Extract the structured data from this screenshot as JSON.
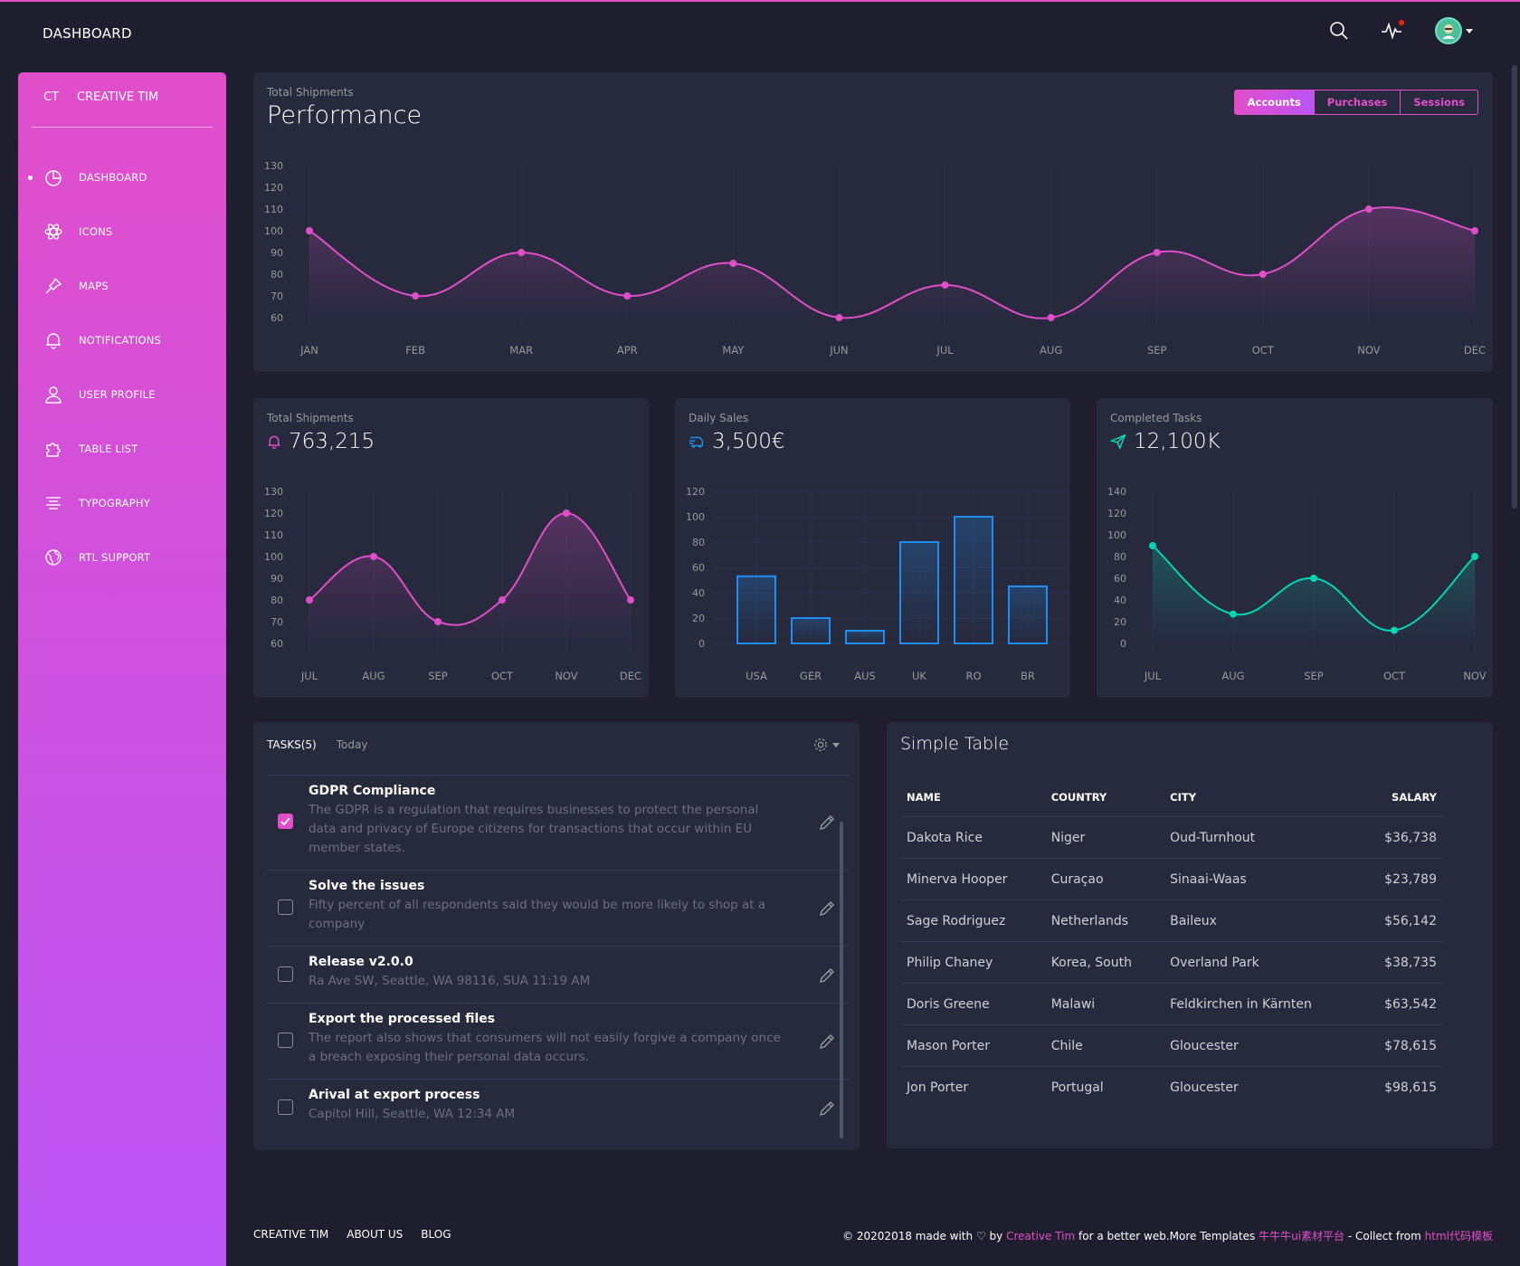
{
  "header": {
    "brand": "DASHBOARD"
  },
  "sidebar": {
    "logo_mini": "CT",
    "logo_text": "CREATIVE TIM",
    "items": [
      {
        "label": "DASHBOARD",
        "icon": "chart-pie-icon",
        "active": true
      },
      {
        "label": "ICONS",
        "icon": "atom-icon"
      },
      {
        "label": "MAPS",
        "icon": "pin-icon"
      },
      {
        "label": "NOTIFICATIONS",
        "icon": "bell-icon"
      },
      {
        "label": "USER PROFILE",
        "icon": "user-icon"
      },
      {
        "label": "TABLE LIST",
        "icon": "puzzle-icon"
      },
      {
        "label": "TYPOGRAPHY",
        "icon": "align-center-icon"
      },
      {
        "label": "RTL SUPPORT",
        "icon": "world-icon"
      }
    ]
  },
  "performance": {
    "subtitle": "Total Shipments",
    "title": "Performance",
    "tabs": [
      "Accounts",
      "Purchases",
      "Sessions"
    ],
    "active_tab": "Accounts"
  },
  "shipments": {
    "subtitle": "Total Shipments",
    "value": "763,215"
  },
  "daily_sales": {
    "subtitle": "Daily Sales",
    "value": "3,500€"
  },
  "completed_tasks": {
    "subtitle": "Completed Tasks",
    "value": "12,100K"
  },
  "chart_data": [
    {
      "type": "line",
      "categories": [
        "JAN",
        "FEB",
        "MAR",
        "APR",
        "MAY",
        "JUN",
        "JUL",
        "AUG",
        "SEP",
        "OCT",
        "NOV",
        "DEC"
      ],
      "series": [
        {
          "values": [
            100,
            70,
            90,
            70,
            85,
            60,
            75,
            60,
            90,
            80,
            110,
            100
          ]
        }
      ],
      "yticks": [
        60,
        70,
        80,
        90,
        100,
        110,
        120,
        130
      ],
      "ylim": [
        60,
        130
      ],
      "color": "#e14eca"
    },
    {
      "type": "line",
      "categories": [
        "JUL",
        "AUG",
        "SEP",
        "OCT",
        "NOV",
        "DEC"
      ],
      "series": [
        {
          "values": [
            80,
            100,
            70,
            80,
            120,
            80
          ]
        }
      ],
      "yticks": [
        60,
        70,
        80,
        90,
        100,
        110,
        120,
        130
      ],
      "ylim": [
        60,
        130
      ],
      "color": "#e14eca"
    },
    {
      "type": "bar",
      "categories": [
        "USA",
        "GER",
        "AUS",
        "UK",
        "RO",
        "BR"
      ],
      "series": [
        {
          "values": [
            53,
            20,
            10,
            80,
            100,
            45
          ]
        }
      ],
      "yticks": [
        0,
        20,
        40,
        60,
        80,
        100,
        120
      ],
      "ylim": [
        0,
        120
      ],
      "color": "#1f8ef1"
    },
    {
      "type": "line",
      "categories": [
        "JUL",
        "AUG",
        "SEP",
        "OCT",
        "NOV"
      ],
      "series": [
        {
          "values": [
            90,
            27,
            60,
            12,
            80
          ]
        }
      ],
      "yticks": [
        0,
        20,
        40,
        60,
        80,
        100,
        120,
        140
      ],
      "ylim": [
        0,
        140
      ],
      "color": "#00d6b4"
    }
  ],
  "tasks": {
    "tab_label": "TASKS(5)",
    "tab_other": "Today",
    "items": [
      {
        "title": "GDPR Compliance",
        "desc": "The GDPR is a regulation that requires businesses to protect the personal data and privacy of Europe citizens for transactions that occur within EU member states.",
        "checked": true
      },
      {
        "title": "Solve the issues",
        "desc": "Fifty percent of all respondents said they would be more likely to shop at a company",
        "checked": false
      },
      {
        "title": "Release v2.0.0",
        "desc": "Ra Ave SW, Seattle, WA 98116, SUA 11:19 AM",
        "checked": false
      },
      {
        "title": "Export the processed files",
        "desc": "The report also shows that consumers will not easily forgive a company once a breach exposing their personal data occurs.",
        "checked": false
      },
      {
        "title": "Arival at export process",
        "desc": "Capitol Hill, Seattle, WA 12:34 AM",
        "checked": false
      }
    ]
  },
  "simple_table": {
    "title": "Simple Table",
    "headers": [
      "NAME",
      "COUNTRY",
      "CITY",
      "SALARY"
    ],
    "rows": [
      [
        "Dakota Rice",
        "Niger",
        "Oud-Turnhout",
        "$36,738"
      ],
      [
        "Minerva Hooper",
        "Curaçao",
        "Sinaai-Waas",
        "$23,789"
      ],
      [
        "Sage Rodriguez",
        "Netherlands",
        "Baileux",
        "$56,142"
      ],
      [
        "Philip Chaney",
        "Korea, South",
        "Overland Park",
        "$38,735"
      ],
      [
        "Doris Greene",
        "Malawi",
        "Feldkirchen in Kärnten",
        "$63,542"
      ],
      [
        "Mason Porter",
        "Chile",
        "Gloucester",
        "$78,615"
      ],
      [
        "Jon Porter",
        "Portugal",
        "Gloucester",
        "$98,615"
      ]
    ]
  },
  "footer": {
    "links": [
      "CREATIVE TIM",
      "ABOUT US",
      "BLOG"
    ],
    "copy_1": "© 20202018 made with",
    "copy_by": "by",
    "copy_author": "Creative Tim",
    "copy_2": "for a better web.More Templates",
    "copy_site1": "牛牛牛ui素材平台",
    "copy_3": "- Collect from",
    "copy_site2": "html代码模板"
  },
  "colors": {
    "primary": "#e14eca",
    "secondary": "#ba54f5",
    "info": "#1f8ef1",
    "success": "#00d6b4",
    "card": "#27293d",
    "background": "#1e1e2f"
  }
}
